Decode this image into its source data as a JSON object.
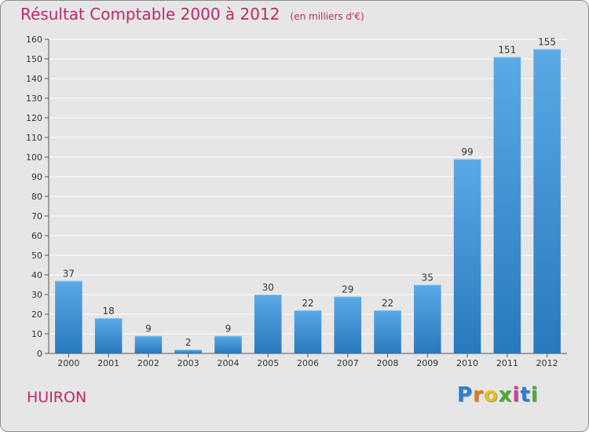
{
  "header": {
    "title": "Résultat Comptable 2000 à 2012",
    "unit_note": "(en milliers d'€)"
  },
  "footer": {
    "place": "HUIRON",
    "logo_text": "Proxiti"
  },
  "colors": {
    "title": "#c0286a",
    "bar_top": "#5aaae6",
    "bar_bottom": "#2878be",
    "background": "#e6e6e6",
    "grid": "#ffffff"
  },
  "chart_data": {
    "type": "bar",
    "title": "Résultat Comptable 2000 à 2012",
    "subtitle": "(en milliers d'€)",
    "xlabel": "",
    "ylabel": "",
    "categories": [
      "2000",
      "2001",
      "2002",
      "2003",
      "2004",
      "2005",
      "2006",
      "2007",
      "2008",
      "2009",
      "2010",
      "2011",
      "2012"
    ],
    "values": [
      37,
      18,
      9,
      2,
      9,
      30,
      22,
      29,
      22,
      35,
      99,
      151,
      155
    ],
    "ylim": [
      0,
      160
    ],
    "yticks": [
      0,
      10,
      20,
      30,
      40,
      50,
      60,
      70,
      80,
      90,
      100,
      110,
      120,
      130,
      140,
      150,
      160
    ],
    "grid": true,
    "legend": "none"
  }
}
